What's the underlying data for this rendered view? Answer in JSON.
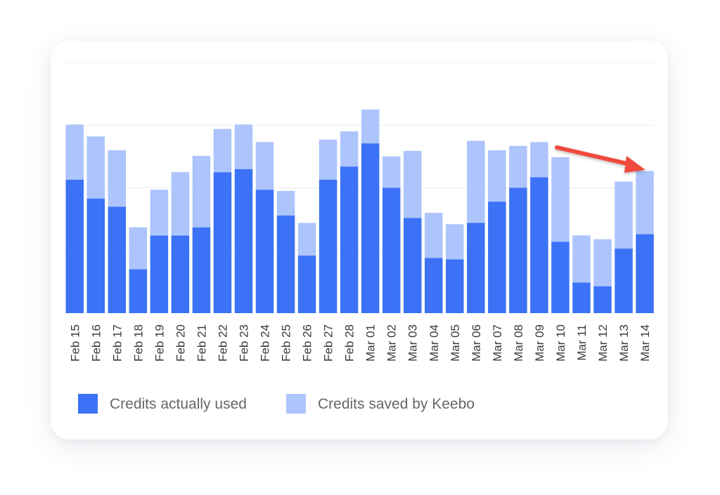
{
  "chart_data": {
    "type": "bar",
    "stacked": true,
    "categories": [
      "Feb 15",
      "Feb 16",
      "Feb 17",
      "Feb 18",
      "Feb 19",
      "Feb 20",
      "Feb 21",
      "Feb 22",
      "Feb 23",
      "Feb 24",
      "Feb 25",
      "Feb 26",
      "Feb 27",
      "Feb 28",
      "Mar 01",
      "Mar 02",
      "Mar 03",
      "Mar 04",
      "Mar 05",
      "Mar 06",
      "Mar 07",
      "Mar 08",
      "Mar 09",
      "Mar 10",
      "Mar 11",
      "Mar 12",
      "Mar 13",
      "Mar 14"
    ],
    "series": [
      {
        "name": "Credits actually used",
        "color": "#3b72f6",
        "values": [
          213,
          183,
          170,
          70,
          124,
          124,
          137,
          225,
          230,
          197,
          156,
          92,
          213,
          234,
          271,
          200,
          152,
          88,
          86,
          144,
          178,
          200,
          217,
          114,
          49,
          43,
          103,
          126
        ]
      },
      {
        "name": "Credits saved by Keebo",
        "color": "#adc4fc",
        "values": [
          88,
          99,
          90,
          67,
          73,
          101,
          114,
          69,
          71,
          76,
          39,
          52,
          64,
          56,
          54,
          50,
          107,
          72,
          56,
          131,
          82,
          67,
          56,
          135,
          75,
          75,
          107,
          101
        ]
      }
    ],
    "ylim": [
      0,
      400
    ],
    "grid": true,
    "legend": "bottom-left",
    "annotation": "red arrow pointing down toward Mar 14 (downward trend)",
    "annotation_color": "#f04a3c"
  }
}
